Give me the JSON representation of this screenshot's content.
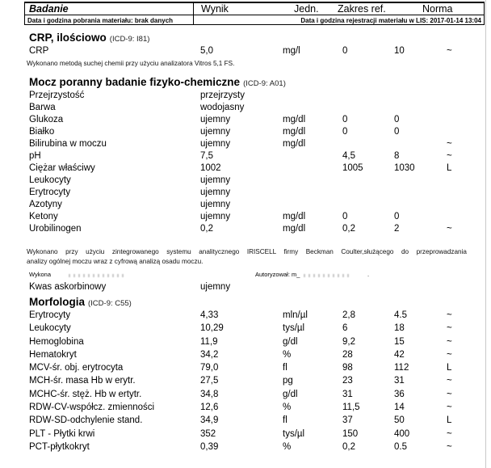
{
  "report": {
    "header": {
      "col_badanie": "Badanie",
      "col_wynik": "Wynik",
      "col_jedn": "Jedn.",
      "col_zakres_ref": "Zakres ref.",
      "col_norma": "Norma",
      "meta_left": "Data i godzina pobrania materiału: brak danych",
      "meta_right": "Data i godzina rejestracji materiału w LIS: 2017-01-14 13:04"
    },
    "sections": [
      {
        "id": "crp",
        "title": "CRP, ilościowo",
        "icd": "(ICD-9: I81)",
        "items": [
          {
            "type": "row",
            "name": "CRP",
            "result": "5,0",
            "unit": "mg/l",
            "ref_low": "0",
            "ref_high": "10",
            "norm": "~"
          },
          {
            "type": "note",
            "justify": false,
            "lines": [
              "Wykonano metodą suchej chemii przy użyciu analizatora Vitros 5,1 FS."
            ]
          }
        ]
      },
      {
        "id": "mocz",
        "title": "Mocz poranny badanie fizyko-chemiczne",
        "icd": "(ICD-9: A01)",
        "items": [
          {
            "type": "row",
            "name": "Przejrzystość",
            "result": "przejrzysty",
            "unit": "",
            "ref_low": "",
            "ref_high": "",
            "norm": ""
          },
          {
            "type": "row",
            "name": "Barwa",
            "result": "wodojasny",
            "unit": "",
            "ref_low": "",
            "ref_high": "",
            "norm": ""
          },
          {
            "type": "row",
            "name": "Glukoza",
            "result": "ujemny",
            "unit": "mg/dl",
            "ref_low": "0",
            "ref_high": "0",
            "norm": ""
          },
          {
            "type": "row",
            "name": "Białko",
            "result": "ujemny",
            "unit": "mg/dl",
            "ref_low": "0",
            "ref_high": "0",
            "norm": ""
          },
          {
            "type": "row",
            "name": "Bilirubina w moczu",
            "result": "ujemny",
            "unit": "mg/dl",
            "ref_low": "",
            "ref_high": "",
            "norm": "~"
          },
          {
            "type": "row",
            "name": "pH",
            "result": "7,5",
            "unit": "",
            "ref_low": "4,5",
            "ref_high": "8",
            "norm": "~"
          },
          {
            "type": "row",
            "name": "Ciężar właściwy",
            "result": "1002",
            "unit": "",
            "ref_low": "1005",
            "ref_high": "1030",
            "norm": "L"
          },
          {
            "type": "row",
            "name": "Leukocyty",
            "result": "ujemny",
            "unit": "",
            "ref_low": "",
            "ref_high": "",
            "norm": ""
          },
          {
            "type": "row",
            "name": "Erytrocyty",
            "result": "ujemny",
            "unit": "",
            "ref_low": "",
            "ref_high": "",
            "norm": ""
          },
          {
            "type": "row",
            "name": "Azotyny",
            "result": "ujemny",
            "unit": "",
            "ref_low": "",
            "ref_high": "",
            "norm": ""
          },
          {
            "type": "row",
            "name": "Ketony",
            "result": "ujemny",
            "unit": "mg/dl",
            "ref_low": "0",
            "ref_high": "0",
            "norm": ""
          },
          {
            "type": "row",
            "name": "Urobilinogen",
            "result": "0,2",
            "unit": "mg/dl",
            "ref_low": "0,2",
            "ref_high": "2",
            "norm": "~"
          },
          {
            "type": "note",
            "justify": true,
            "lines": [
              "Wykonano przy użyciu zintegrowanego systemu analitycznego IRISCELL firmy Beckman Coulter,służącego do przeprowadzania",
              "analizy ogólnej moczu wraz z cyfrową analizą osadu moczu."
            ]
          },
          {
            "type": "signature",
            "left": "Wykona",
            "right": "Autoryzował: m_",
            "tail": "."
          },
          {
            "type": "row",
            "name": "Kwas askorbinowy",
            "result": "ujemny",
            "unit": "",
            "ref_low": "",
            "ref_high": "",
            "norm": ""
          }
        ]
      },
      {
        "id": "morfologia",
        "title": "Morfologia",
        "icd": "(ICD-9: C55)",
        "items": [
          {
            "type": "row",
            "name": "Erytrocyty",
            "result": "4,33",
            "unit": "mln/µl",
            "ref_low": "2,8",
            "ref_high": "4.5",
            "norm": "~"
          },
          {
            "type": "row",
            "name": "Leukocyty",
            "result": "10,29",
            "unit": "tys/µl",
            "ref_low": "6",
            "ref_high": "18",
            "norm": "~"
          },
          {
            "type": "row",
            "name": "Hemoglobina",
            "result": "11,9",
            "unit": "g/dl",
            "ref_low": "9,2",
            "ref_high": "15",
            "norm": "~"
          },
          {
            "type": "row",
            "name": "Hematokryt",
            "result": "34,2",
            "unit": "%",
            "ref_low": "28",
            "ref_high": "42",
            "norm": "~"
          },
          {
            "type": "row",
            "name": "MCV-śr. obj. erytrocyta",
            "result": "79,0",
            "unit": "fl",
            "ref_low": "98",
            "ref_high": "112",
            "norm": "L"
          },
          {
            "type": "row",
            "name": "MCH-śr. masa Hb w erytr.",
            "result": "27,5",
            "unit": "pg",
            "ref_low": "23",
            "ref_high": "31",
            "norm": "~"
          },
          {
            "type": "row",
            "name": "MCHC-śr. stęż. Hb w ertytr.",
            "result": "34,8",
            "unit": "g/dl",
            "ref_low": "31",
            "ref_high": "36",
            "norm": "~"
          },
          {
            "type": "row",
            "name": "RDW-CV-współcz. zmienności",
            "result": "12,6",
            "unit": "%",
            "ref_low": "11,5",
            "ref_high": "14",
            "norm": "~"
          },
          {
            "type": "row",
            "name": "RDW-SD-odchylenie stand.",
            "result": "34,9",
            "unit": "fl",
            "ref_low": "37",
            "ref_high": "50",
            "norm": "L"
          },
          {
            "type": "row",
            "name": "PLT - Płytki krwi",
            "result": "352",
            "unit": "tys/µl",
            "ref_low": "150",
            "ref_high": "400",
            "norm": "~"
          },
          {
            "type": "row",
            "name": "PCT-płytkokryt",
            "result": "0,39",
            "unit": "%",
            "ref_low": "0,2",
            "ref_high": "0.5",
            "norm": "~"
          }
        ]
      }
    ]
  }
}
